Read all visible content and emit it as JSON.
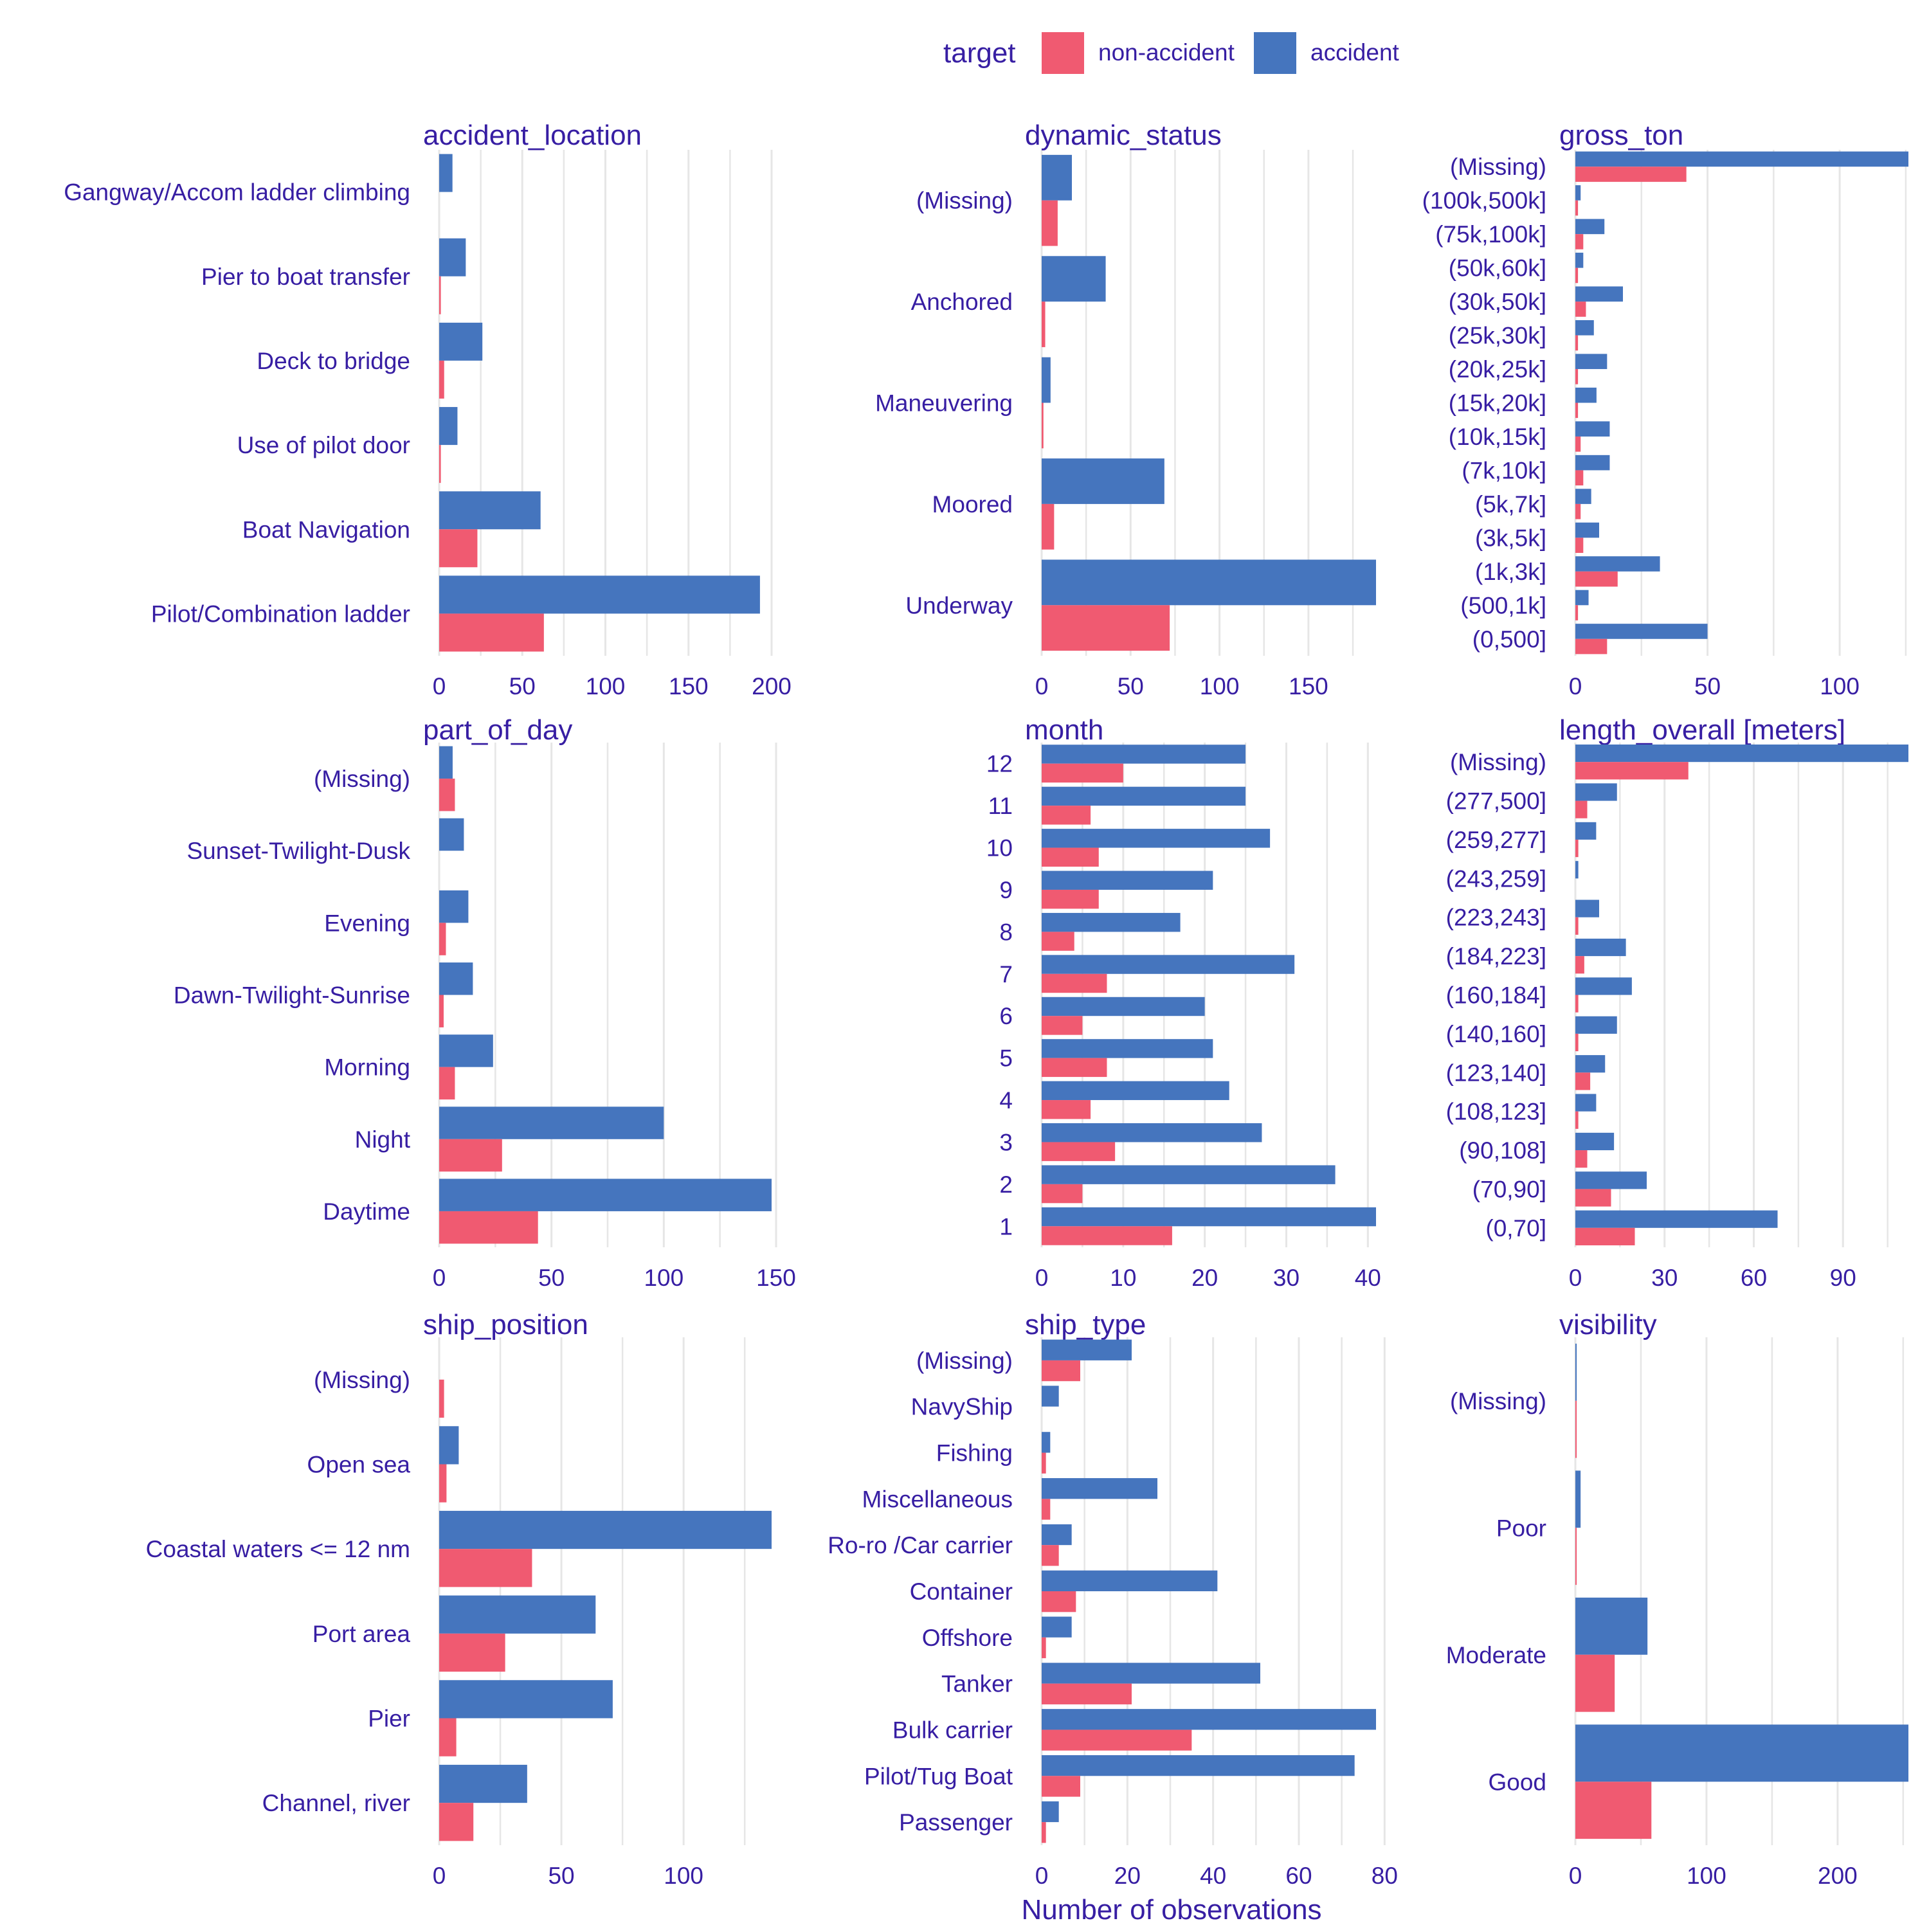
{
  "colors": {
    "accident": "#4575BE",
    "non_accident": "#F05A71",
    "text": "#371EA3",
    "grid": "#E6E6E6"
  },
  "legend": {
    "title": "target",
    "position": "top",
    "items": [
      {
        "label": "non-accident",
        "color": "#F05A71"
      },
      {
        "label": "accident",
        "color": "#4575BE"
      }
    ]
  },
  "x_axis_label": "Number of observations",
  "chart_data": [
    {
      "type": "bar",
      "orientation": "horizontal",
      "title": "accident_location",
      "categories": [
        "Gangway/Accom ladder climbing",
        "Pier to boat transfer",
        "Deck to bridge",
        "Use of pilot door",
        "Boat Navigation",
        "Pilot/Combination ladder"
      ],
      "series": [
        {
          "name": "accident",
          "values": [
            8,
            16,
            26,
            11,
            61,
            193
          ]
        },
        {
          "name": "non-accident",
          "values": [
            0,
            1,
            3,
            1,
            23,
            63
          ]
        }
      ],
      "xlim": [
        0,
        200
      ],
      "xticks": [
        0,
        50,
        100,
        150,
        200
      ],
      "grid": true
    },
    {
      "type": "bar",
      "orientation": "horizontal",
      "title": "dynamic_status",
      "categories": [
        "(Missing)",
        "Anchored",
        "Maneuvering",
        "Moored",
        "Underway"
      ],
      "series": [
        {
          "name": "accident",
          "values": [
            17,
            36,
            5,
            69,
            188
          ]
        },
        {
          "name": "non-accident",
          "values": [
            9,
            2,
            1,
            7,
            72
          ]
        }
      ],
      "xlim": [
        0,
        188
      ],
      "xticks": [
        0,
        50,
        100,
        150
      ],
      "grid": true
    },
    {
      "type": "bar",
      "orientation": "horizontal",
      "title": "gross_ton",
      "categories": [
        "(Missing)",
        "(100k,500k]",
        "(75k,100k]",
        "(50k,60k]",
        "(30k,50k]",
        "(25k,30k]",
        "(20k,25k]",
        "(15k,20k]",
        "(10k,15k]",
        "(7k,10k]",
        "(5k,7k]",
        "(3k,5k]",
        "(1k,3k]",
        "(500,1k]",
        "(0,500]"
      ],
      "series": [
        {
          "name": "accident",
          "values": [
            126,
            2,
            11,
            3,
            18,
            7,
            12,
            8,
            13,
            13,
            6,
            9,
            32,
            5,
            50
          ]
        },
        {
          "name": "non-accident",
          "values": [
            42,
            1,
            3,
            1,
            4,
            1,
            1,
            1,
            2,
            3,
            2,
            3,
            16,
            1,
            12
          ]
        }
      ],
      "xlim": [
        0,
        126
      ],
      "xticks": [
        0,
        50,
        100
      ],
      "grid": true
    },
    {
      "type": "bar",
      "orientation": "horizontal",
      "title": "part_of_day",
      "categories": [
        "(Missing)",
        "Sunset-Twilight-Dusk",
        "Evening",
        "Dawn-Twilight-Sunrise",
        "Morning",
        "Night",
        "Daytime"
      ],
      "series": [
        {
          "name": "accident",
          "values": [
            6,
            11,
            13,
            15,
            24,
            100,
            148
          ]
        },
        {
          "name": "non-accident",
          "values": [
            7,
            0,
            3,
            2,
            7,
            28,
            44
          ]
        }
      ],
      "xlim": [
        0,
        148
      ],
      "xticks": [
        0,
        50,
        100,
        150
      ],
      "grid": true
    },
    {
      "type": "bar",
      "orientation": "horizontal",
      "title": "month",
      "categories": [
        "12",
        "11",
        "10",
        "9",
        "8",
        "7",
        "6",
        "5",
        "4",
        "3",
        "2",
        "1"
      ],
      "series": [
        {
          "name": "accident",
          "values": [
            25,
            25,
            28,
            21,
            17,
            31,
            20,
            21,
            23,
            27,
            36,
            41
          ]
        },
        {
          "name": "non-accident",
          "values": [
            10,
            6,
            7,
            7,
            4,
            8,
            5,
            8,
            6,
            9,
            5,
            16
          ]
        }
      ],
      "xlim": [
        0,
        41
      ],
      "xticks": [
        0,
        10,
        20,
        30,
        40
      ],
      "grid": true
    },
    {
      "type": "bar",
      "orientation": "horizontal",
      "title": "length_overall [meters]",
      "categories": [
        "(Missing)",
        "(277,500]",
        "(259,277]",
        "(243,259]",
        "(223,243]",
        "(184,223]",
        "(160,184]",
        "(140,160]",
        "(123,140]",
        "(108,123]",
        "(90,108]",
        "(70,90]",
        "(0,70]"
      ],
      "series": [
        {
          "name": "accident",
          "values": [
            112,
            14,
            7,
            1,
            8,
            17,
            19,
            14,
            10,
            7,
            13,
            24,
            68
          ]
        },
        {
          "name": "non-accident",
          "values": [
            38,
            4,
            1,
            0,
            1,
            3,
            1,
            1,
            5,
            1,
            4,
            12,
            20
          ]
        }
      ],
      "xlim": [
        0,
        112
      ],
      "xticks": [
        0,
        30,
        60,
        90
      ],
      "grid": true
    },
    {
      "type": "bar",
      "orientation": "horizontal",
      "title": "ship_position",
      "categories": [
        "(Missing)",
        "Open sea",
        "Coastal waters <= 12 nm",
        "Port area",
        "Pier",
        "Channel, river"
      ],
      "series": [
        {
          "name": "accident",
          "values": [
            0,
            8,
            136,
            64,
            71,
            36
          ]
        },
        {
          "name": "non-accident",
          "values": [
            2,
            3,
            38,
            27,
            7,
            14
          ]
        }
      ],
      "xlim": [
        0,
        136
      ],
      "xticks": [
        0,
        50,
        100
      ],
      "grid": true
    },
    {
      "type": "bar",
      "orientation": "horizontal",
      "title": "ship_type",
      "categories": [
        "(Missing)",
        "NavyShip",
        "Fishing",
        "Miscellaneous",
        "Ro-ro /Car carrier",
        "Container",
        "Offshore",
        "Tanker",
        "Bulk carrier",
        "Pilot/Tug Boat",
        "Passenger"
      ],
      "series": [
        {
          "name": "accident",
          "values": [
            21,
            4,
            2,
            27,
            7,
            41,
            7,
            51,
            78,
            73,
            4
          ]
        },
        {
          "name": "non-accident",
          "values": [
            9,
            0,
            1,
            2,
            4,
            8,
            1,
            21,
            35,
            9,
            1
          ]
        }
      ],
      "xlim": [
        0,
        78
      ],
      "xticks": [
        0,
        20,
        40,
        60,
        80
      ],
      "grid": true
    },
    {
      "type": "bar",
      "orientation": "horizontal",
      "title": "visibility",
      "categories": [
        "(Missing)",
        "Poor",
        "Moderate",
        "Good"
      ],
      "series": [
        {
          "name": "accident",
          "values": [
            1,
            4,
            55,
            254
          ]
        },
        {
          "name": "non-accident",
          "values": [
            1,
            1,
            30,
            58
          ]
        }
      ],
      "xlim": [
        0,
        254
      ],
      "xticks": [
        0,
        100,
        200
      ],
      "grid": true
    }
  ]
}
